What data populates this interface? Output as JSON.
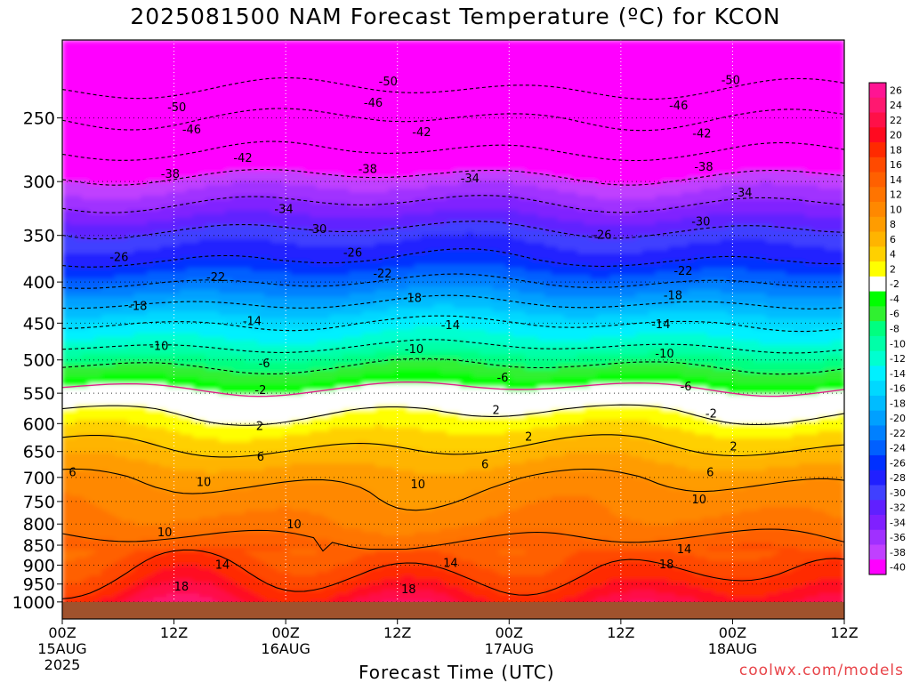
{
  "chart_data": {
    "type": "heatmap",
    "title": "2025081500 NAM Forecast Temperature (ºC) for KCON",
    "xlabel": "Forecast Time (UTC)",
    "ylabel": "",
    "credit": "coolwx.com/models",
    "y_axis": {
      "scale": "log",
      "inverted": true,
      "ylim": [
        1050,
        200
      ],
      "ticks": [
        250,
        300,
        350,
        400,
        450,
        500,
        550,
        600,
        650,
        700,
        750,
        800,
        850,
        900,
        950,
        1000
      ]
    },
    "x_axis": {
      "xlim": [
        0,
        84
      ],
      "ticks": [
        {
          "hour": 0,
          "lines": [
            "00Z",
            "15AUG",
            "2025"
          ]
        },
        {
          "hour": 12,
          "lines": [
            "12Z"
          ]
        },
        {
          "hour": 24,
          "lines": [
            "00Z",
            "16AUG"
          ]
        },
        {
          "hour": 36,
          "lines": [
            "12Z"
          ]
        },
        {
          "hour": 48,
          "lines": [
            "00Z",
            "17AUG"
          ]
        },
        {
          "hour": 60,
          "lines": [
            "12Z"
          ]
        },
        {
          "hour": 72,
          "lines": [
            "00Z",
            "18AUG"
          ]
        },
        {
          "hour": 84,
          "lines": [
            "12Z"
          ]
        }
      ]
    },
    "grid": true,
    "ground_below_hpa": 1000,
    "colorbar": {
      "position": "right",
      "levels": [
        26,
        24,
        22,
        20,
        18,
        16,
        14,
        12,
        10,
        8,
        6,
        4,
        2,
        -2,
        -4,
        -6,
        -8,
        -10,
        -12,
        -14,
        -16,
        -18,
        -20,
        -22,
        -24,
        -26,
        -28,
        -30,
        -32,
        -34,
        -36,
        -38,
        -40
      ],
      "colors": [
        "#ff1493",
        "#ff1870",
        "#ff1048",
        "#ff0a20",
        "#ff2a00",
        "#ff4a00",
        "#ff6000",
        "#ff7400",
        "#ff8800",
        "#ff9c00",
        "#ffb400",
        "#ffd000",
        "#ffff00",
        "#ffffff",
        "#00ff00",
        "#30f030",
        "#00ff80",
        "#00ffa8",
        "#00ffd0",
        "#00f0ff",
        "#00d8ff",
        "#00bcff",
        "#00a0ff",
        "#0080ff",
        "#0060ff",
        "#0030ff",
        "#2020ff",
        "#4040ff",
        "#6020ff",
        "#8020ff",
        "#a030ff",
        "#c040ff",
        "#ff00ff"
      ]
    },
    "contour_labels": [
      {
        "value": "-50",
        "hour": 35.0,
        "hpa": 225
      },
      {
        "value": "-50",
        "hour": 12.3,
        "hpa": 242
      },
      {
        "value": "-50",
        "hour": 71.8,
        "hpa": 224
      },
      {
        "value": "-46",
        "hour": 33.4,
        "hpa": 239
      },
      {
        "value": "-46",
        "hour": 13.9,
        "hpa": 258
      },
      {
        "value": "-46",
        "hour": 66.2,
        "hpa": 241
      },
      {
        "value": "-42",
        "hour": 19.4,
        "hpa": 280
      },
      {
        "value": "-42",
        "hour": 38.6,
        "hpa": 260
      },
      {
        "value": "-42",
        "hour": 68.7,
        "hpa": 261
      },
      {
        "value": "-38",
        "hour": 11.6,
        "hpa": 293
      },
      {
        "value": "-38",
        "hour": 32.8,
        "hpa": 289
      },
      {
        "value": "-38",
        "hour": 68.9,
        "hpa": 287
      },
      {
        "value": "-34",
        "hour": 23.8,
        "hpa": 324
      },
      {
        "value": "-34",
        "hour": 43.8,
        "hpa": 297
      },
      {
        "value": "-34",
        "hour": 73.1,
        "hpa": 309
      },
      {
        "value": "-30",
        "hour": 27.4,
        "hpa": 343
      },
      {
        "value": "-30",
        "hour": 68.6,
        "hpa": 336
      },
      {
        "value": "-26",
        "hour": 6.1,
        "hpa": 372
      },
      {
        "value": "-26",
        "hour": 31.2,
        "hpa": 367
      },
      {
        "value": "-26",
        "hour": 58.0,
        "hpa": 349
      },
      {
        "value": "-22",
        "hour": 16.5,
        "hpa": 394
      },
      {
        "value": "-22",
        "hour": 34.4,
        "hpa": 390
      },
      {
        "value": "-22",
        "hour": 66.7,
        "hpa": 387
      },
      {
        "value": "-18",
        "hour": 8.1,
        "hpa": 428
      },
      {
        "value": "-18",
        "hour": 37.6,
        "hpa": 418
      },
      {
        "value": "-18",
        "hour": 65.6,
        "hpa": 415
      },
      {
        "value": "-14",
        "hour": 20.4,
        "hpa": 447
      },
      {
        "value": "-14",
        "hour": 41.7,
        "hpa": 452
      },
      {
        "value": "-14",
        "hour": 64.3,
        "hpa": 451
      },
      {
        "value": "-10",
        "hour": 10.4,
        "hpa": 480
      },
      {
        "value": "-10",
        "hour": 37.8,
        "hpa": 484
      },
      {
        "value": "-10",
        "hour": 64.7,
        "hpa": 490
      },
      {
        "value": "-6",
        "hour": 21.7,
        "hpa": 504
      },
      {
        "value": "-6",
        "hour": 47.3,
        "hpa": 525
      },
      {
        "value": "-6",
        "hour": 67.0,
        "hpa": 539
      },
      {
        "value": "-2",
        "hour": 21.3,
        "hpa": 544
      },
      {
        "value": "2",
        "hour": 46.6,
        "hpa": 576
      },
      {
        "value": "-2",
        "hour": 69.7,
        "hpa": 582
      },
      {
        "value": "2",
        "hour": 21.2,
        "hpa": 603
      },
      {
        "value": "2",
        "hour": 50.1,
        "hpa": 622
      },
      {
        "value": "2",
        "hour": 72.1,
        "hpa": 640
      },
      {
        "value": "6",
        "hour": 21.3,
        "hpa": 659
      },
      {
        "value": "6",
        "hour": 45.4,
        "hpa": 673
      },
      {
        "value": "6",
        "hour": 69.6,
        "hpa": 689
      },
      {
        "value": "6",
        "hour": 1.1,
        "hpa": 689
      },
      {
        "value": "10",
        "hour": 15.2,
        "hpa": 708
      },
      {
        "value": "10",
        "hour": 38.2,
        "hpa": 713
      },
      {
        "value": "10",
        "hour": 68.4,
        "hpa": 744
      },
      {
        "value": "10",
        "hour": 24.9,
        "hpa": 800
      },
      {
        "value": "10",
        "hour": 11.0,
        "hpa": 818
      },
      {
        "value": "14",
        "hour": 66.8,
        "hpa": 859
      },
      {
        "value": "14",
        "hour": 41.7,
        "hpa": 893
      },
      {
        "value": "14",
        "hour": 17.2,
        "hpa": 898
      },
      {
        "value": "18",
        "hour": 64.9,
        "hpa": 897
      },
      {
        "value": "18",
        "hour": 12.8,
        "hpa": 955
      },
      {
        "value": "18",
        "hour": 37.2,
        "hpa": 963
      }
    ]
  }
}
